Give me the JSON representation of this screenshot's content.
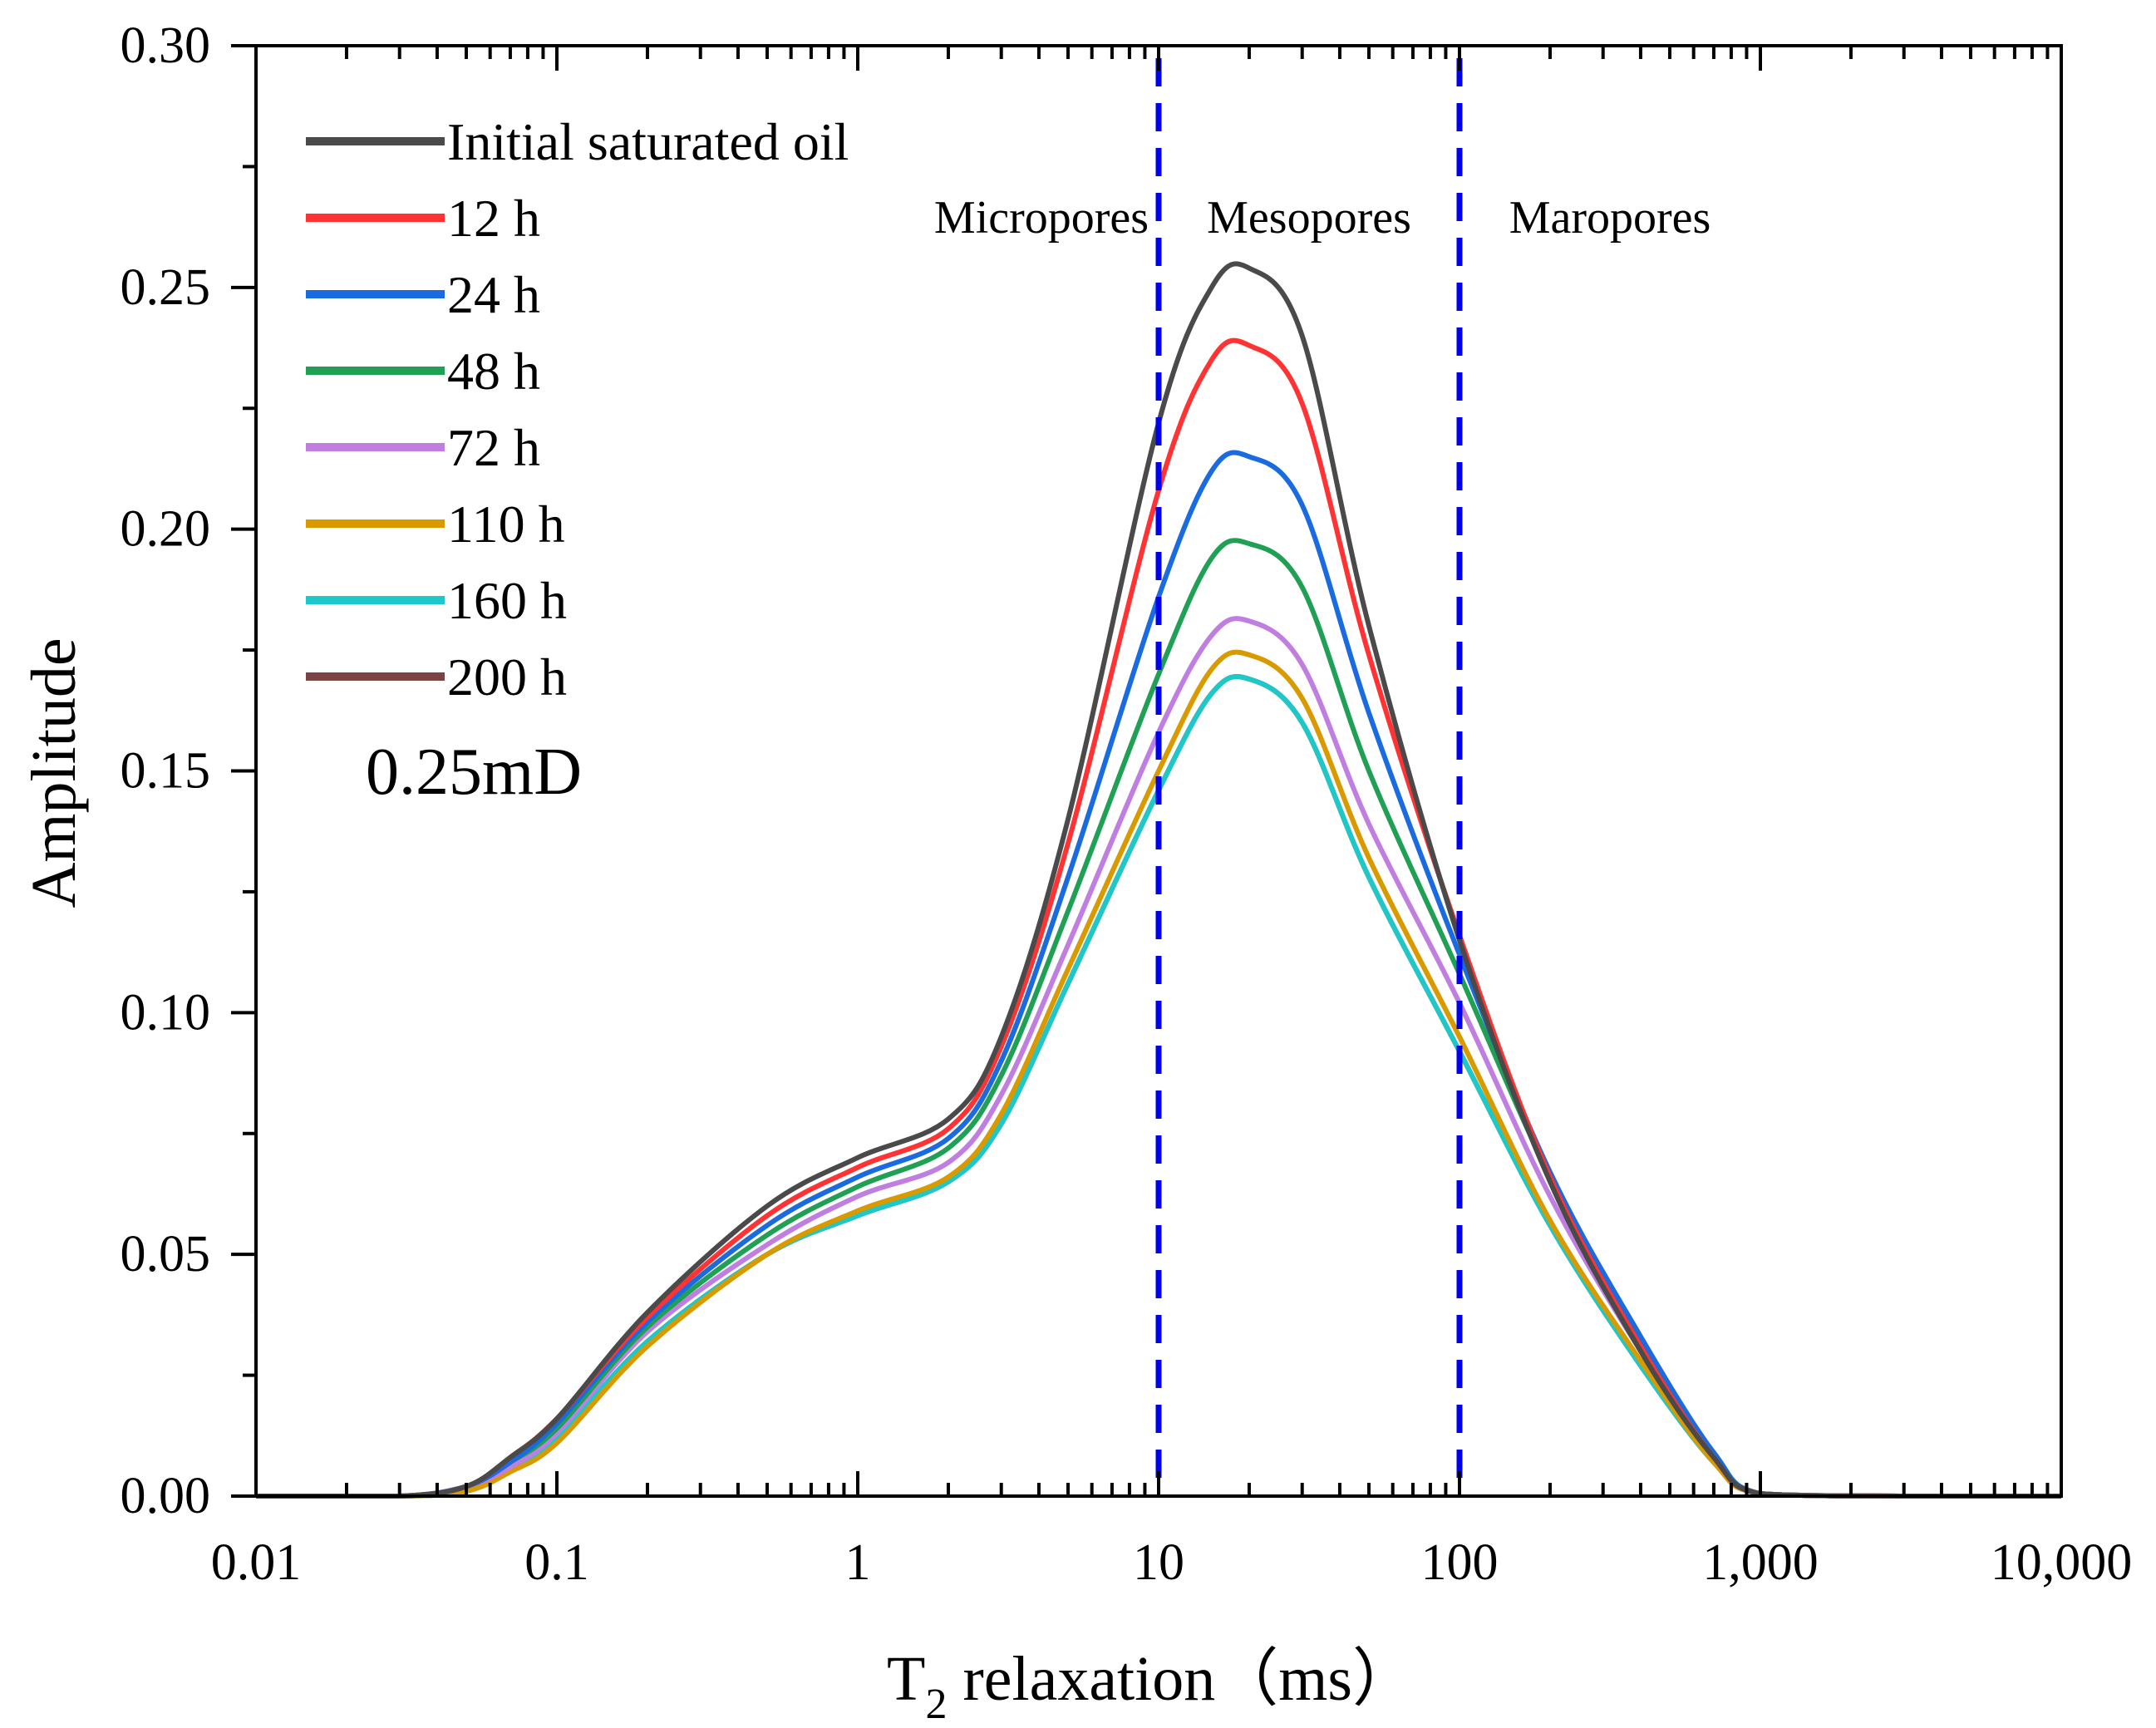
{
  "chart_data": {
    "type": "line",
    "title": "",
    "xlabel_main": "T",
    "xlabel_sub": "2",
    "xlabel_rest": " relaxation（ms）",
    "ylabel": "Amplitude",
    "xscale": "log",
    "xlim": [
      0.01,
      10000
    ],
    "ylim": [
      0,
      0.3
    ],
    "x_ticks": [
      0.01,
      0.1,
      1,
      10,
      100,
      1000,
      10000
    ],
    "x_tick_labels": [
      "0.01",
      "0.1",
      "1",
      "10",
      "100",
      "1,000",
      "10,000"
    ],
    "y_ticks": [
      0,
      0.05,
      0.1,
      0.15,
      0.2,
      0.25,
      0.3
    ],
    "y_tick_labels": [
      "0.00",
      "0.05",
      "0.10",
      "0.15",
      "0.20",
      "0.25",
      "0.30"
    ],
    "grid": false,
    "legend_position": "top-left",
    "annotation": "0.25mD",
    "regions": [
      {
        "label": "Micropores"
      },
      {
        "label": "Mesopores"
      },
      {
        "label": "Maropores"
      }
    ],
    "dividers": [
      10,
      100
    ],
    "divider_color": "#0000ee",
    "x": [
      0.01,
      0.03,
      0.05,
      0.07,
      0.1,
      0.2,
      0.5,
      1,
      2,
      3,
      5,
      10,
      15,
      20,
      30,
      50,
      100,
      200,
      400,
      700,
      1000,
      3000,
      10000
    ],
    "series": [
      {
        "name": "Initial saturated oil",
        "color": "#4a4a4a",
        "values": [
          0,
          0,
          0.002,
          0.008,
          0.016,
          0.038,
          0.06,
          0.07,
          0.078,
          0.095,
          0.14,
          0.222,
          0.25,
          0.254,
          0.24,
          0.18,
          0.115,
          0.065,
          0.03,
          0.008,
          0.0005,
          0,
          0
        ]
      },
      {
        "name": "12 h",
        "color": "#ff3333",
        "values": [
          0,
          0,
          0.002,
          0.008,
          0.016,
          0.037,
          0.058,
          0.068,
          0.076,
          0.093,
          0.135,
          0.208,
          0.235,
          0.238,
          0.226,
          0.174,
          0.116,
          0.066,
          0.031,
          0.008,
          0.0005,
          0,
          0
        ]
      },
      {
        "name": "24 h",
        "color": "#1a6be0",
        "values": [
          0,
          0,
          0.002,
          0.007,
          0.015,
          0.036,
          0.056,
          0.066,
          0.074,
          0.09,
          0.128,
          0.186,
          0.212,
          0.215,
          0.205,
          0.162,
          0.112,
          0.067,
          0.033,
          0.009,
          0.0005,
          0,
          0
        ]
      },
      {
        "name": "48 h",
        "color": "#1fa055",
        "values": [
          0,
          0,
          0.002,
          0.007,
          0.014,
          0.035,
          0.054,
          0.064,
          0.072,
          0.087,
          0.121,
          0.17,
          0.194,
          0.197,
          0.188,
          0.15,
          0.108,
          0.066,
          0.032,
          0.009,
          0.0005,
          0,
          0
        ]
      },
      {
        "name": "72 h",
        "color": "#c07fe0",
        "values": [
          0,
          0,
          0.002,
          0.006,
          0.013,
          0.034,
          0.052,
          0.062,
          0.069,
          0.083,
          0.114,
          0.158,
          0.178,
          0.181,
          0.172,
          0.139,
          0.102,
          0.062,
          0.03,
          0.008,
          0.0005,
          0,
          0
        ]
      },
      {
        "name": "110 h",
        "color": "#d99a00",
        "values": [
          0,
          0,
          0.001,
          0.005,
          0.011,
          0.031,
          0.05,
          0.059,
          0.066,
          0.079,
          0.109,
          0.15,
          0.171,
          0.174,
          0.165,
          0.132,
          0.095,
          0.057,
          0.028,
          0.007,
          0.0005,
          0,
          0
        ]
      },
      {
        "name": "160 h",
        "color": "#1ec8c8",
        "values": [
          0,
          0,
          0.001,
          0.006,
          0.012,
          0.032,
          0.05,
          0.058,
          0.065,
          0.077,
          0.106,
          0.146,
          0.166,
          0.169,
          0.16,
          0.128,
          0.092,
          0.056,
          0.027,
          0.007,
          0.0005,
          0,
          0
        ]
      },
      {
        "name": "200 h",
        "color": "#7b4444",
        "values": [
          0,
          0,
          0.001,
          0.006,
          0.012,
          0.032,
          0.05,
          0.058,
          0.065,
          0.077,
          0.106,
          0.146,
          0.166,
          0.169,
          0.16,
          0.128,
          0.092,
          0.056,
          0.027,
          0.007,
          0.0005,
          0,
          0
        ]
      }
    ]
  }
}
